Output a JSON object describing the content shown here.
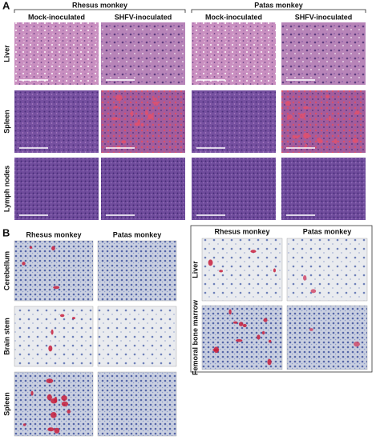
{
  "panel_a": {
    "label": "A",
    "groups": [
      {
        "title": "Rhesus monkey",
        "columns": [
          "Mock-inoculated",
          "SHFV-inoculated"
        ]
      },
      {
        "title": "Patas monkey",
        "columns": [
          "Mock-inoculated",
          "SHFV-inoculated"
        ]
      }
    ],
    "rows": [
      "Liver",
      "Spleen",
      "Lymph nodes"
    ]
  },
  "panel_b": {
    "label": "B",
    "left": {
      "columns": [
        "Rhesus monkey",
        "Patas monkey"
      ],
      "rows": [
        "Cerebellum",
        "Brain stem",
        "Spleen"
      ]
    },
    "right": {
      "columns": [
        "Rhesus monkey",
        "Patas monkey"
      ],
      "rows": [
        "Liver",
        "Femoral bone marrow"
      ]
    }
  }
}
